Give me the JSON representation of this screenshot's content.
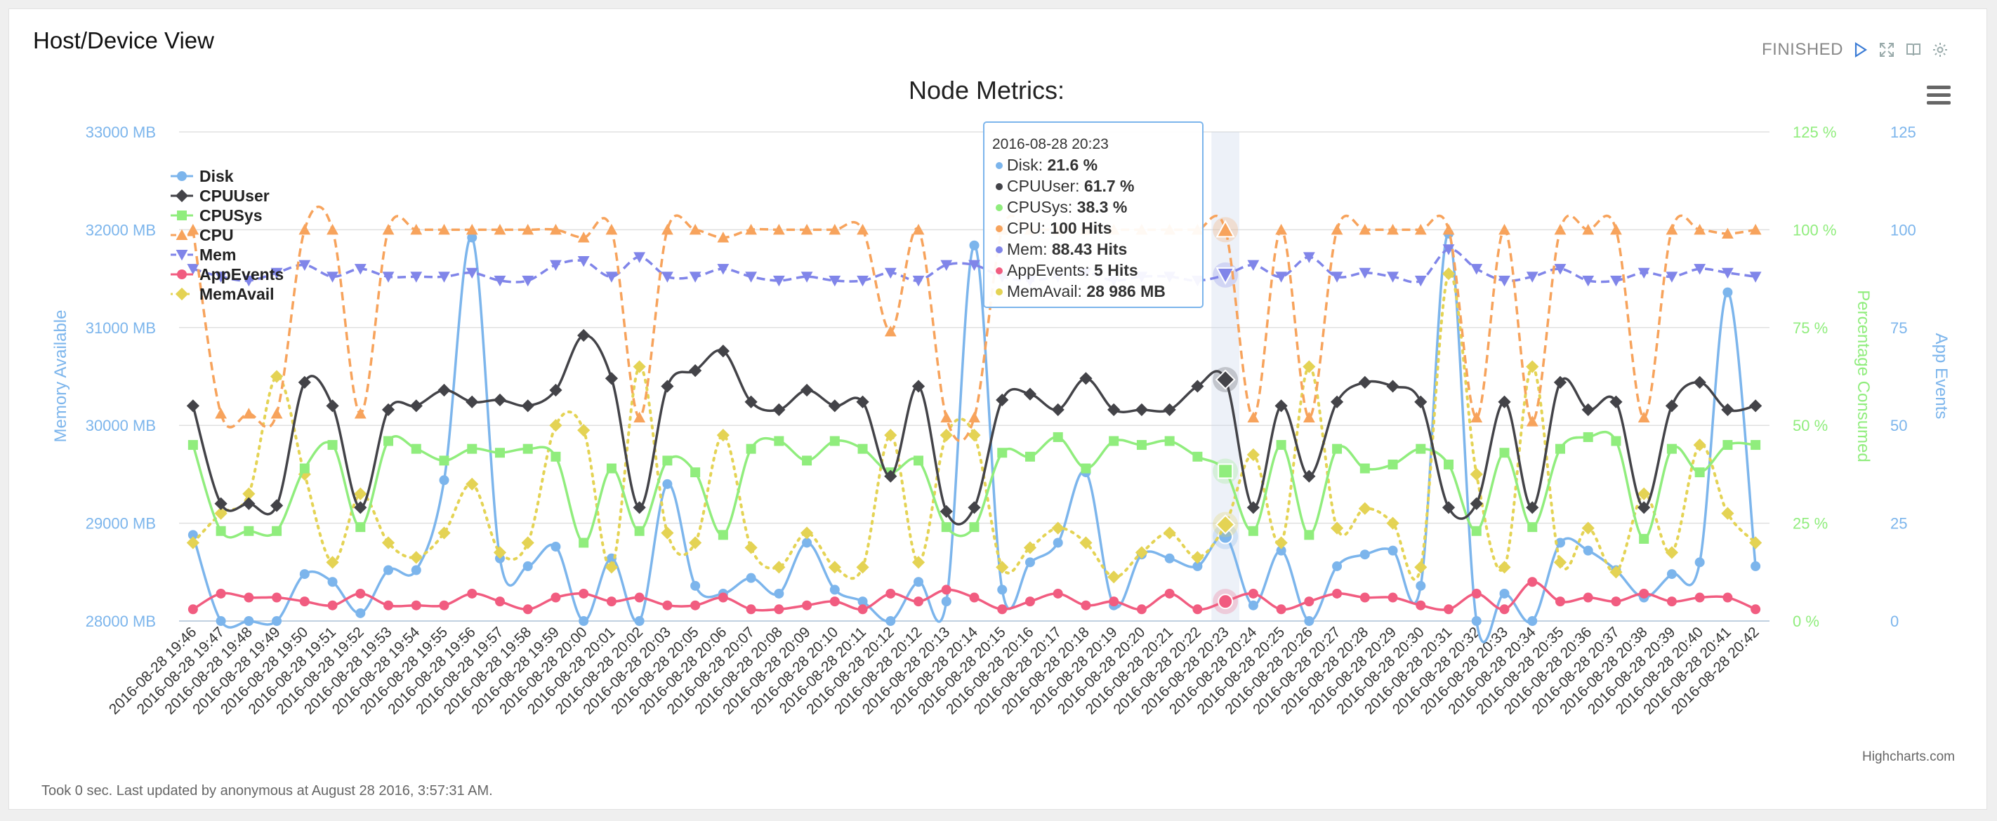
{
  "page": {
    "title": "Host/Device View",
    "status": "FINISHED",
    "icons": [
      "play-icon",
      "fullscreen-icon",
      "book-icon",
      "gear-icon"
    ],
    "footer": "Took 0 sec. Last updated by anonymous at August 28 2016, 3:57:31 AM."
  },
  "chart_data": {
    "type": "line",
    "title": "Node Metrics:",
    "credits": "Highcharts.com",
    "menu_icon": "hamburger-menu-icon",
    "legend_position": "top-left",
    "grid": true,
    "axes": {
      "memory": {
        "label": "Memory Available",
        "ylim": [
          28000,
          33000
        ],
        "ticks": [
          "28000 MB",
          "29000 MB",
          "30000 MB",
          "31000 MB",
          "32000 MB",
          "33000 MB"
        ],
        "color": "#7cb5ec"
      },
      "percent": {
        "label": "Percentage Consumed",
        "ylim": [
          0,
          125
        ],
        "ticks": [
          "0 %",
          "25 %",
          "50 %",
          "75 %",
          "100 %",
          "125 %"
        ],
        "color": "#90ed7d"
      },
      "events": {
        "label": "App Events",
        "ylim": [
          0,
          125
        ],
        "ticks": [
          "0",
          "25",
          "50",
          "75",
          "100",
          "125"
        ],
        "color": "#7cb5ec"
      }
    },
    "categories": [
      "2016-08-28 19:46",
      "2016-08-28 19:47",
      "2016-08-28 19:48",
      "2016-08-28 19:49",
      "2016-08-28 19:50",
      "2016-08-28 19:51",
      "2016-08-28 19:52",
      "2016-08-28 19:53",
      "2016-08-28 19:54",
      "2016-08-28 19:55",
      "2016-08-28 19:56",
      "2016-08-28 19:57",
      "2016-08-28 19:58",
      "2016-08-28 19:59",
      "2016-08-28 20:00",
      "2016-08-28 20:01",
      "2016-08-28 20:02",
      "2016-08-28 20:03",
      "2016-08-28 20:05",
      "2016-08-28 20:06",
      "2016-08-28 20:07",
      "2016-08-28 20:08",
      "2016-08-28 20:09",
      "2016-08-28 20:10",
      "2016-08-28 20:11",
      "2016-08-28 20:12",
      "2016-08-28 20:12",
      "2016-08-28 20:13",
      "2016-08-28 20:14",
      "2016-08-28 20:15",
      "2016-08-28 20:16",
      "2016-08-28 20:17",
      "2016-08-28 20:18",
      "2016-08-28 20:19",
      "2016-08-28 20:20",
      "2016-08-28 20:21",
      "2016-08-28 20:22",
      "2016-08-28 20:23",
      "2016-08-28 20:24",
      "2016-08-28 20:25",
      "2016-08-28 20:26",
      "2016-08-28 20:27",
      "2016-08-28 20:28",
      "2016-08-28 20:29",
      "2016-08-28 20:30",
      "2016-08-28 20:31",
      "2016-08-28 20:32",
      "2016-08-28 20:33",
      "2016-08-28 20:34",
      "2016-08-28 20:35",
      "2016-08-28 20:36",
      "2016-08-28 20:37",
      "2016-08-28 20:38",
      "2016-08-28 20:39",
      "2016-08-28 20:40",
      "2016-08-28 20:41",
      "2016-08-28 20:42"
    ],
    "series": [
      {
        "name": "Disk",
        "axis": "percent",
        "color": "#7cb5ec",
        "marker": "circle",
        "dash": false,
        "values": [
          22,
          0,
          0,
          0,
          12,
          10,
          2,
          13,
          13,
          36,
          98,
          16,
          14,
          19,
          0,
          16,
          0,
          35,
          9,
          7,
          11,
          7,
          20,
          8,
          5,
          0,
          10,
          5,
          96,
          8,
          15,
          20,
          38,
          4,
          17,
          16,
          14,
          21.6,
          4,
          18,
          0,
          14,
          17,
          18,
          9,
          99,
          0,
          7,
          0,
          20,
          18,
          13,
          6,
          12,
          15,
          84,
          14
        ]
      },
      {
        "name": "CPUUser",
        "axis": "percent",
        "color": "#434348",
        "marker": "diamond",
        "dash": false,
        "values": [
          55,
          30,
          30,
          29.5,
          61,
          55,
          29,
          54,
          55,
          59,
          56,
          56.5,
          55,
          59,
          73,
          62,
          29,
          60,
          64,
          69,
          56,
          54,
          59,
          55,
          56,
          37,
          60,
          28,
          29,
          56.5,
          58,
          54,
          62,
          54,
          54,
          54,
          60,
          61.7,
          29,
          55,
          37,
          56,
          61,
          60,
          56,
          29,
          30,
          56,
          29,
          61,
          54,
          56,
          29,
          55,
          61,
          54,
          55
        ]
      },
      {
        "name": "CPUSys",
        "axis": "percent",
        "color": "#90ed7d",
        "marker": "square",
        "dash": false,
        "values": [
          45,
          23,
          23,
          23,
          39,
          45,
          24,
          46,
          44,
          41,
          44,
          43,
          44,
          42,
          20,
          39,
          23,
          41,
          38,
          22,
          44,
          46,
          41,
          46,
          44,
          38,
          41,
          24,
          24,
          43,
          42,
          47,
          39,
          46,
          45,
          46,
          42,
          38.3,
          23,
          45,
          22,
          44,
          39,
          40,
          44,
          40,
          23,
          43,
          24,
          44,
          47,
          46,
          21,
          44,
          38,
          45,
          45
        ]
      },
      {
        "name": "CPU",
        "axis": "percent",
        "color": "#f7a35c",
        "marker": "triangle",
        "dash": true,
        "values": [
          100,
          53,
          53,
          53,
          100,
          100,
          53,
          100,
          100,
          100,
          100,
          100,
          100,
          100,
          98,
          100,
          52,
          100,
          100,
          98,
          100,
          100,
          100,
          100,
          100,
          74,
          100,
          52,
          52,
          100,
          100,
          100,
          100,
          100,
          100,
          100,
          100,
          100,
          52,
          100,
          52,
          100,
          100,
          100,
          100,
          100,
          52,
          100,
          51,
          100,
          100,
          100,
          52,
          100,
          100,
          99,
          100
        ]
      },
      {
        "name": "Mem",
        "axis": "percent",
        "color": "#8085e9",
        "marker": "triangle-down",
        "dash": true,
        "values": [
          90,
          88,
          87,
          89,
          91,
          88,
          90,
          88,
          88,
          88,
          89,
          87,
          87,
          91,
          92,
          88,
          93,
          88,
          88,
          90,
          88,
          87,
          88,
          87,
          87,
          89,
          87,
          91,
          91,
          88,
          87,
          88,
          89,
          87,
          88,
          88,
          87,
          88.43,
          91,
          88,
          93,
          88,
          89,
          88,
          87,
          95,
          90,
          87,
          88,
          90,
          87,
          87,
          89,
          88,
          90,
          89,
          88
        ]
      },
      {
        "name": "AppEvents",
        "axis": "events",
        "color": "#f15c80",
        "marker": "circle",
        "dash": false,
        "values": [
          3,
          7,
          6,
          6,
          5,
          4,
          7,
          4,
          4,
          4,
          7,
          5,
          3,
          6,
          7,
          5,
          6,
          4,
          4,
          6,
          3,
          3,
          4,
          5,
          3,
          7,
          5,
          8,
          6,
          3,
          5,
          7,
          4,
          5,
          3,
          7,
          3,
          5,
          7,
          3,
          5,
          7,
          6,
          6,
          4,
          3,
          7,
          3,
          10,
          5,
          6,
          5,
          7,
          5,
          6,
          6,
          3
        ]
      },
      {
        "name": "MemAvail",
        "axis": "memory",
        "color": "#e4d354",
        "marker": "diamond",
        "dash": "dot",
        "values": [
          28800,
          29100,
          29300,
          30500,
          29500,
          28600,
          29300,
          28800,
          28650,
          28900,
          29400,
          28700,
          28800,
          30000,
          29950,
          28550,
          30600,
          28900,
          28800,
          29900,
          28750,
          28550,
          28900,
          28550,
          28550,
          29900,
          28600,
          29900,
          29900,
          28550,
          28750,
          28950,
          28800,
          28450,
          28700,
          28900,
          28650,
          28986,
          29700,
          28800,
          30600,
          28950,
          29150,
          29000,
          28550,
          31550,
          29500,
          28550,
          30600,
          28600,
          28950,
          28500,
          29300,
          28700,
          29800,
          29100,
          28800
        ]
      }
    ],
    "tooltip": {
      "header": "2016-08-28 20:23",
      "index": 37,
      "rows": [
        {
          "name": "Disk",
          "value": "21.6 %",
          "color": "#7cb5ec"
        },
        {
          "name": "CPUUser",
          "value": "61.7 %",
          "color": "#434348"
        },
        {
          "name": "CPUSys",
          "value": "38.3 %",
          "color": "#90ed7d"
        },
        {
          "name": "CPU",
          "value": "100 Hits",
          "color": "#f7a35c"
        },
        {
          "name": "Mem",
          "value": "88.43 Hits",
          "color": "#8085e9"
        },
        {
          "name": "AppEvents",
          "value": "5 Hits",
          "color": "#f15c80"
        },
        {
          "name": "MemAvail",
          "value": "28 986 MB",
          "color": "#e4d354"
        }
      ]
    }
  }
}
